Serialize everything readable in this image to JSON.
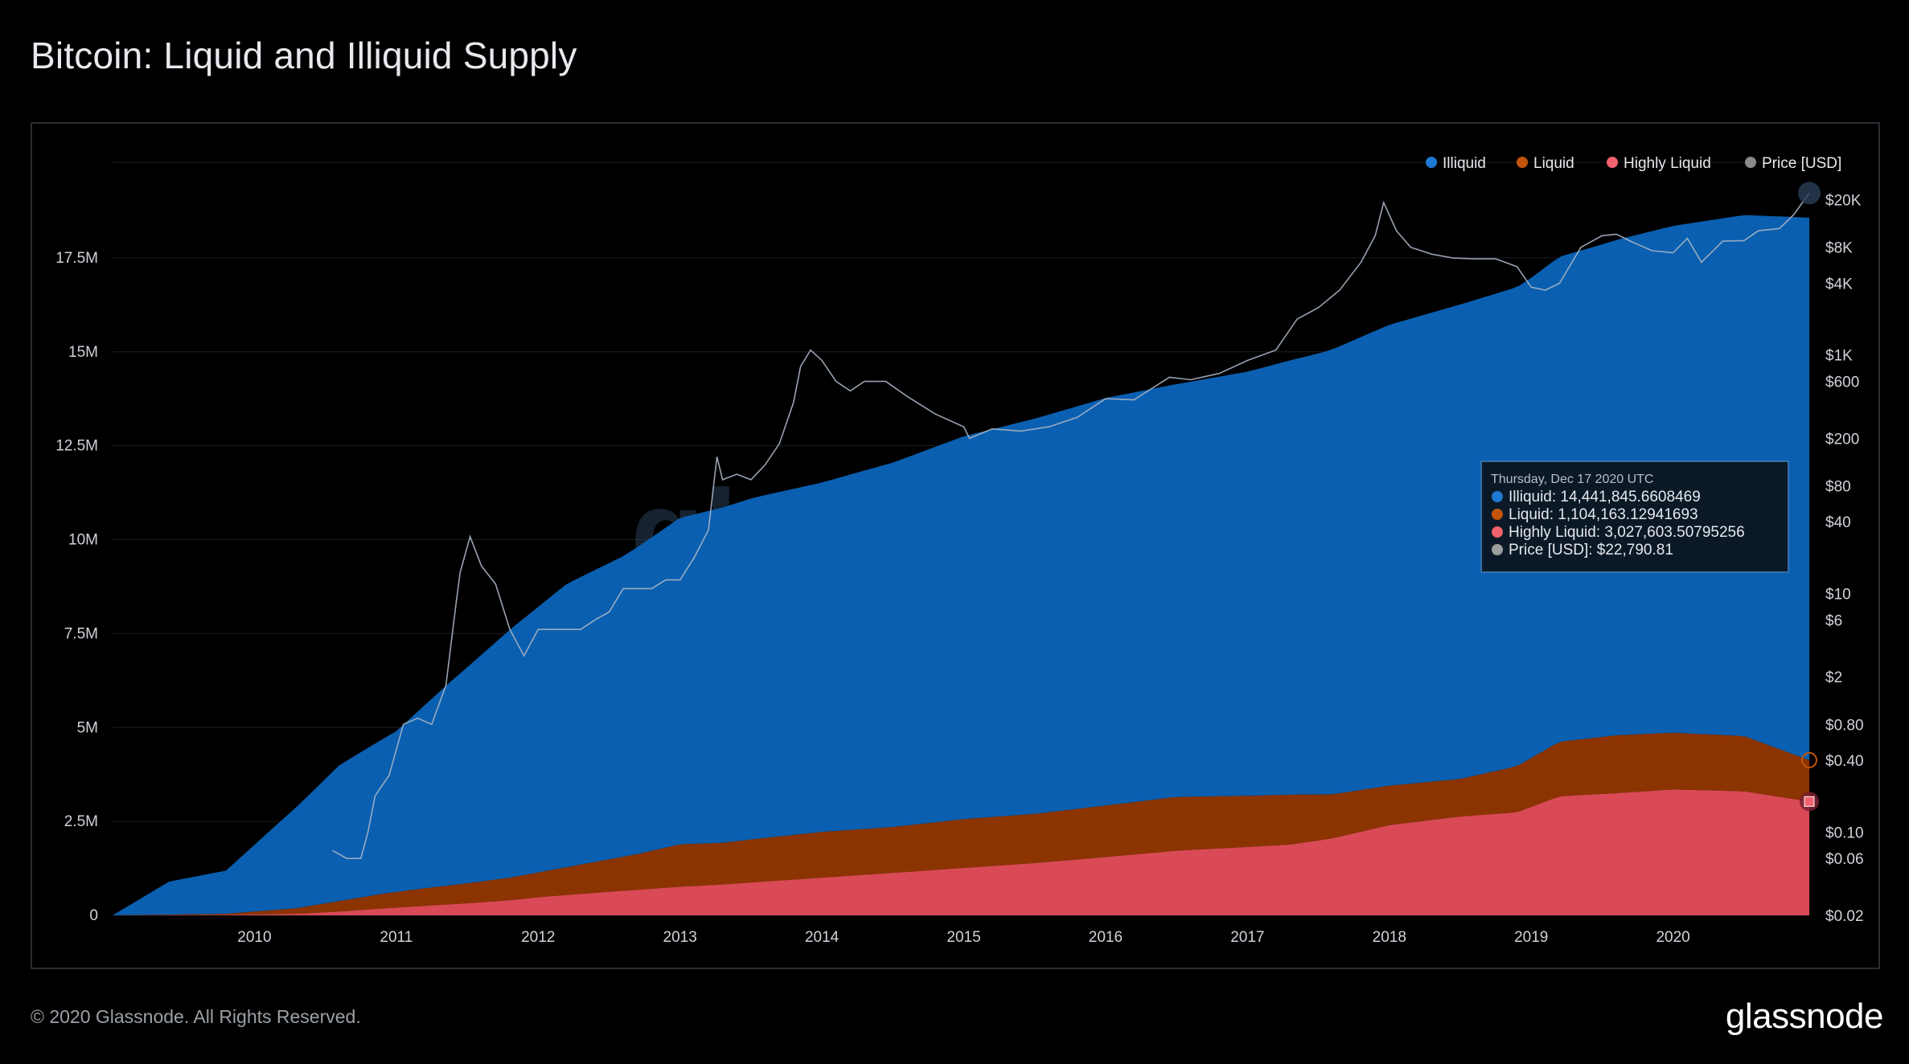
{
  "title": "Bitcoin: Liquid and Illiquid Supply",
  "footer": {
    "copyright": "© 2020 Glassnode. All Rights Reserved.",
    "logo": "glassnode"
  },
  "watermark": "glassnode",
  "colors": {
    "illiquid": "#0a5fb0",
    "liquid": "#8b3400",
    "highly_liquid": "#d94a56",
    "price": "#a9b4c4",
    "grid": "#1c1e23",
    "axis_text": "#cfd3da"
  },
  "tooltip": {
    "date": "Thursday, Dec 17 2020 UTC",
    "rows": [
      {
        "label": "Illiquid: 14,441,845.6608469",
        "color": "#1f78d1"
      },
      {
        "label": "Liquid: 1,104,163.12941693",
        "color": "#c2540a"
      },
      {
        "label": "Highly Liquid: 3,027,603.50795256",
        "color": "#f0626e"
      },
      {
        "label": "Price [USD]: $22,790.81",
        "color": "#9e9e9e"
      }
    ]
  },
  "chart_data": {
    "type": "area",
    "stacked": true,
    "title": "Bitcoin: Liquid and Illiquid Supply",
    "x_range": [
      2009.0,
      2020.96
    ],
    "x_ticks": [
      {
        "v": 2010,
        "label": "2010"
      },
      {
        "v": 2011,
        "label": "2011"
      },
      {
        "v": 2012,
        "label": "2012"
      },
      {
        "v": 2013,
        "label": "2013"
      },
      {
        "v": 2014,
        "label": "2014"
      },
      {
        "v": 2015,
        "label": "2015"
      },
      {
        "v": 2016,
        "label": "2016"
      },
      {
        "v": 2017,
        "label": "2017"
      },
      {
        "v": 2018,
        "label": "2018"
      },
      {
        "v": 2019,
        "label": "2019"
      },
      {
        "v": 2020,
        "label": "2020"
      }
    ],
    "y_left": {
      "range": [
        0,
        20000000
      ],
      "ticks": [
        {
          "v": 0,
          "label": "0"
        },
        {
          "v": 2500000,
          "label": "2.5M"
        },
        {
          "v": 5000000,
          "label": "5M"
        },
        {
          "v": 7500000,
          "label": "7.5M"
        },
        {
          "v": 10000000,
          "label": "10M"
        },
        {
          "v": 12500000,
          "label": "12.5M"
        },
        {
          "v": 15000000,
          "label": "15M"
        },
        {
          "v": 17500000,
          "label": "17.5M"
        }
      ]
    },
    "y_right": {
      "scale": "log",
      "range": [
        0.02,
        40000
      ],
      "ticks": [
        {
          "v": 0.02,
          "label": "$0.02"
        },
        {
          "v": 0.06,
          "label": "$0.06"
        },
        {
          "v": 0.1,
          "label": "$0.10"
        },
        {
          "v": 0.4,
          "label": "$0.40"
        },
        {
          "v": 0.8,
          "label": "$0.80"
        },
        {
          "v": 2,
          "label": "$2"
        },
        {
          "v": 6,
          "label": "$6"
        },
        {
          "v": 10,
          "label": "$10"
        },
        {
          "v": 40,
          "label": "$40"
        },
        {
          "v": 80,
          "label": "$80"
        },
        {
          "v": 200,
          "label": "$200"
        },
        {
          "v": 600,
          "label": "$600"
        },
        {
          "v": 1000,
          "label": "$1K"
        },
        {
          "v": 4000,
          "label": "$4K"
        },
        {
          "v": 8000,
          "label": "$8K"
        },
        {
          "v": 20000,
          "label": "$20K"
        }
      ]
    },
    "legend": {
      "position": "top-right",
      "items": [
        "Illiquid",
        "Liquid",
        "Highly Liquid",
        "Price [USD]"
      ]
    },
    "series": [
      {
        "name": "Highly Liquid",
        "x": [
          2009.0,
          2009.8,
          2010.3,
          2010.6,
          2010.9,
          2011.2,
          2011.5,
          2011.8,
          2012.0,
          2012.3,
          2012.7,
          2013.0,
          2013.3,
          2013.6,
          2014.0,
          2014.5,
          2015.0,
          2015.5,
          2016.0,
          2016.5,
          2017.0,
          2017.3,
          2017.6,
          2018.0,
          2018.5,
          2018.9,
          2019.2,
          2019.6,
          2020.0,
          2020.5,
          2020.96
        ],
        "values": [
          0,
          10000,
          40000,
          100000,
          180000,
          250000,
          320000,
          400000,
          480000,
          570000,
          680000,
          760000,
          820000,
          900000,
          1000000,
          1130000,
          1260000,
          1390000,
          1550000,
          1720000,
          1820000,
          1880000,
          2050000,
          2400000,
          2630000,
          2740000,
          3170000,
          3250000,
          3350000,
          3300000,
          3030000
        ]
      },
      {
        "name": "Liquid",
        "x": [
          2009.0,
          2009.8,
          2010.3,
          2010.6,
          2010.9,
          2011.2,
          2011.5,
          2011.8,
          2012.0,
          2012.3,
          2012.7,
          2013.0,
          2013.3,
          2013.6,
          2014.0,
          2014.5,
          2015.0,
          2015.5,
          2016.0,
          2016.5,
          2017.0,
          2017.3,
          2017.6,
          2018.0,
          2018.5,
          2018.9,
          2019.2,
          2019.6,
          2020.0,
          2020.5,
          2020.96
        ],
        "values": [
          0,
          30000,
          150000,
          280000,
          390000,
          470000,
          530000,
          600000,
          660000,
          780000,
          950000,
          1130000,
          1110000,
          1160000,
          1220000,
          1220000,
          1300000,
          1310000,
          1370000,
          1430000,
          1360000,
          1330000,
          1170000,
          1050000,
          1000000,
          1230000,
          1450000,
          1540000,
          1510000,
          1470000,
          1100000
        ]
      },
      {
        "name": "Illiquid",
        "x": [
          2009.0,
          2009.4,
          2009.8,
          2010.2,
          2010.6,
          2011.0,
          2011.4,
          2011.8,
          2012.2,
          2012.6,
          2013.0,
          2013.5,
          2014.0,
          2014.5,
          2015.0,
          2015.5,
          2016.0,
          2016.5,
          2017.0,
          2017.5,
          2018.0,
          2018.5,
          2019.0,
          2019.5,
          2020.0,
          2020.5,
          2020.96
        ],
        "values": [
          0,
          880000,
          1150000,
          2400000,
          3620000,
          4280000,
          5470000,
          6600000,
          7540000,
          8000000,
          8690000,
          9080000,
          9300000,
          9700000,
          10190000,
          10520000,
          10850000,
          10990000,
          11290000,
          11740000,
          12270000,
          12630000,
          12780000,
          13110000,
          13490000,
          13870000,
          14440000
        ]
      }
    ],
    "price_series": {
      "name": "Price [USD]",
      "x": [
        2010.55,
        2010.65,
        2010.75,
        2010.8,
        2010.85,
        2010.95,
        2011.05,
        2011.15,
        2011.25,
        2011.35,
        2011.42,
        2011.45,
        2011.52,
        2011.6,
        2011.7,
        2011.8,
        2011.9,
        2012.0,
        2012.1,
        2012.2,
        2012.3,
        2012.4,
        2012.5,
        2012.6,
        2012.7,
        2012.8,
        2012.9,
        2013.0,
        2013.1,
        2013.2,
        2013.26,
        2013.3,
        2013.4,
        2013.5,
        2013.6,
        2013.7,
        2013.8,
        2013.85,
        2013.92,
        2014.0,
        2014.1,
        2014.2,
        2014.3,
        2014.45,
        2014.6,
        2014.8,
        2015.0,
        2015.04,
        2015.2,
        2015.4,
        2015.6,
        2015.8,
        2016.0,
        2016.2,
        2016.45,
        2016.6,
        2016.8,
        2017.0,
        2017.2,
        2017.35,
        2017.5,
        2017.65,
        2017.8,
        2017.9,
        2017.96,
        2018.05,
        2018.15,
        2018.3,
        2018.45,
        2018.6,
        2018.75,
        2018.9,
        2019.0,
        2019.1,
        2019.2,
        2019.35,
        2019.5,
        2019.6,
        2019.7,
        2019.85,
        2020.0,
        2020.1,
        2020.2,
        2020.35,
        2020.5,
        2020.6,
        2020.75,
        2020.85,
        2020.96
      ],
      "values": [
        0.07,
        0.06,
        0.06,
        0.1,
        0.2,
        0.3,
        0.8,
        0.9,
        0.8,
        1.7,
        8,
        15,
        30,
        17,
        12,
        5,
        3,
        5,
        5,
        5,
        5,
        6,
        7,
        11,
        11,
        11,
        13,
        13,
        20,
        34,
        140,
        90,
        100,
        90,
        120,
        180,
        400,
        800,
        1100,
        900,
        600,
        500,
        600,
        600,
        450,
        320,
        250,
        200,
        240,
        230,
        250,
        300,
        430,
        420,
        650,
        620,
        700,
        900,
        1100,
        2000,
        2500,
        3500,
        6000,
        10000,
        19000,
        11000,
        8000,
        7000,
        6500,
        6400,
        6400,
        5500,
        3700,
        3500,
        4000,
        8000,
        10000,
        10300,
        9000,
        7500,
        7200,
        9500,
        6000,
        9000,
        9100,
        11000,
        11500,
        15000,
        22790
      ]
    }
  }
}
